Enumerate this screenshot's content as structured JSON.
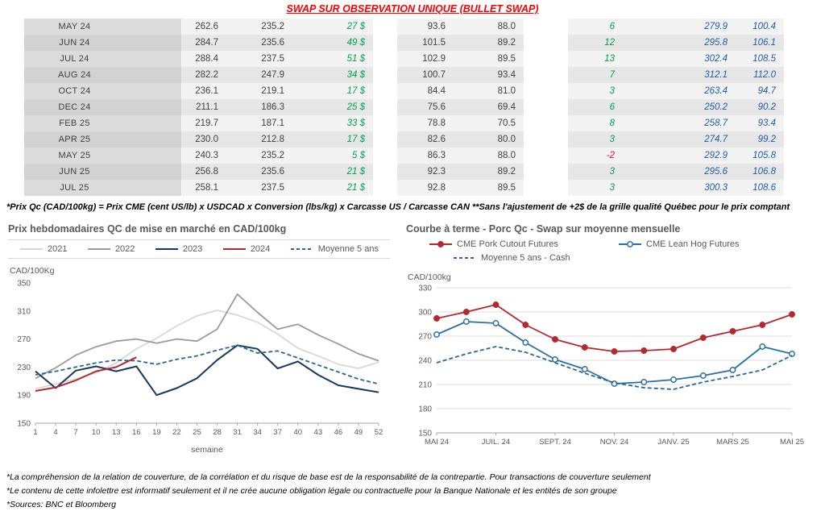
{
  "title": "SWAP SUR OBSERVATION UNIQUE (BULLET SWAP)",
  "colors": {
    "title_red": "#ff0000",
    "positive_green": "#00a14e",
    "negative_red": "#e8112d",
    "futures_blue": "#1f5ca8"
  },
  "table": {
    "rows": [
      {
        "month": "MAY 24",
        "cells": [
          "262.6",
          "235.2",
          "27 $",
          "93.6",
          "88.0",
          "6",
          "279.9",
          "100.4"
        ]
      },
      {
        "month": "JUN 24",
        "cells": [
          "284.7",
          "235.6",
          "49 $",
          "101.5",
          "89.2",
          "12",
          "295.8",
          "106.1"
        ]
      },
      {
        "month": "JUL 24",
        "cells": [
          "288.4",
          "237.5",
          "51 $",
          "102.9",
          "89.5",
          "13",
          "302.4",
          "108.5"
        ]
      },
      {
        "month": "AUG 24",
        "cells": [
          "282.2",
          "247.9",
          "34 $",
          "100.7",
          "93.4",
          "7",
          "312.1",
          "112.0"
        ]
      },
      {
        "month": "OCT 24",
        "cells": [
          "236.1",
          "219.1",
          "17 $",
          "84.4",
          "81.0",
          "3",
          "263.4",
          "94.7"
        ]
      },
      {
        "month": "DEC 24",
        "cells": [
          "211.1",
          "186.3",
          "25 $",
          "75.6",
          "69.4",
          "6",
          "250.2",
          "90.2"
        ]
      },
      {
        "month": "FEB 25",
        "cells": [
          "219.7",
          "187.1",
          "33 $",
          "78.8",
          "70.5",
          "8",
          "258.7",
          "93.4"
        ]
      },
      {
        "month": "APR 25",
        "cells": [
          "230.0",
          "212.8",
          "17 $",
          "82.6",
          "80.0",
          "3",
          "274.7",
          "99.2"
        ]
      },
      {
        "month": "MAY 25",
        "cells": [
          "240.3",
          "235.2",
          "5 $",
          "86.3",
          "88.0",
          "-2",
          "292.9",
          "105.8"
        ]
      },
      {
        "month": "JUN 25",
        "cells": [
          "256.8",
          "235.6",
          "21 $",
          "92.3",
          "89.2",
          "3",
          "295.6",
          "106.8"
        ]
      },
      {
        "month": "JUL 25",
        "cells": [
          "258.1",
          "237.5",
          "21 $",
          "92.8",
          "89.5",
          "3",
          "300.3",
          "108.6"
        ]
      }
    ]
  },
  "table_footnote": "*Prix Qc (CAD/100kg) = Prix CME (cent US/lb) x USDCAD x Conversion (lbs/kg) x Carcasse US / Carcasse CAN **Sans l'ajustement de +2$ de la grille qualité Québec pour le prix comptant",
  "chart_data": [
    {
      "type": "line",
      "title": "Prix hebdomadaires QC de mise en marché en CAD/100kg",
      "ylabel": "CAD/100Kg",
      "xlabel": "semaine",
      "ylim": [
        150,
        350
      ],
      "yticks": [
        150,
        190,
        230,
        270,
        310,
        350
      ],
      "x": [
        1,
        4,
        7,
        10,
        13,
        16,
        19,
        22,
        25,
        28,
        31,
        34,
        37,
        40,
        43,
        46,
        49,
        52
      ],
      "xticks": [
        1,
        4,
        7,
        10,
        13,
        16,
        19,
        22,
        25,
        28,
        31,
        34,
        37,
        40,
        43,
        46,
        49,
        52
      ],
      "grid": false,
      "legend_position": "top",
      "series": [
        {
          "name": "2021",
          "color": "#d6d6d6",
          "style": "solid",
          "width": 1.7,
          "values": [
            199,
            206,
            213,
            222,
            236,
            256,
            271,
            289,
            303,
            311,
            304,
            294,
            277,
            257,
            246,
            234,
            228,
            237
          ]
        },
        {
          "name": "2022",
          "color": "#9b9b9b",
          "style": "solid",
          "width": 1.8,
          "values": [
            214,
            229,
            247,
            259,
            267,
            270,
            264,
            270,
            267,
            284,
            334,
            308,
            284,
            291,
            276,
            263,
            249,
            239
          ]
        },
        {
          "name": "2023",
          "color": "#17375e",
          "style": "solid",
          "width": 2,
          "values": [
            224,
            200,
            225,
            231,
            224,
            231,
            190,
            200,
            214,
            240,
            261,
            256,
            228,
            238,
            219,
            204,
            199,
            194
          ]
        },
        {
          "name": "2024",
          "color": "#b4282e",
          "style": "solid",
          "width": 2,
          "values": [
            196,
            201,
            211,
            224,
            230,
            244,
            null,
            null,
            null,
            null,
            null,
            null,
            null,
            null,
            null,
            null,
            null,
            null
          ]
        },
        {
          "name": "Moyenne 5 ans",
          "color": "#2e6496",
          "style": "dashed",
          "width": 1.8,
          "values": [
            219,
            224,
            230,
            236,
            240,
            239,
            234,
            241,
            246,
            254,
            261,
            250,
            253,
            243,
            233,
            223,
            213,
            206
          ]
        }
      ]
    },
    {
      "type": "line",
      "title": "Courbe à terme - Porc Qc - Swap sur moyenne mensuelle",
      "ylabel": "CAD/100kg",
      "xlabel": "",
      "ylim": [
        150,
        330
      ],
      "yticks": [
        150,
        180,
        210,
        240,
        270,
        300,
        330
      ],
      "x": [
        0,
        1,
        2,
        3,
        4,
        5,
        6,
        7,
        8,
        9,
        10,
        11,
        12
      ],
      "xticks": [
        {
          "pos": 0,
          "label": "MAI 24"
        },
        {
          "pos": 2,
          "label": "JUIL. 24"
        },
        {
          "pos": 4,
          "label": "SEPT. 24"
        },
        {
          "pos": 6,
          "label": "NOV. 24"
        },
        {
          "pos": 8,
          "label": "JANV. 25"
        },
        {
          "pos": 10,
          "label": "MARS 25"
        },
        {
          "pos": 12,
          "label": "MAI 25"
        }
      ],
      "grid": true,
      "legend_position": "top",
      "series": [
        {
          "name": "CME Pork Cutout Futures",
          "color": "#b4282e",
          "style": "solid",
          "width": 1.8,
          "marker": "filled",
          "values": [
            292,
            300,
            309,
            284,
            266,
            256,
            251,
            252,
            254,
            268,
            276,
            284,
            297
          ]
        },
        {
          "name": "CME Lean Hog Futures",
          "color": "#2a6fa8",
          "style": "solid",
          "width": 1.8,
          "marker": "open",
          "values": [
            272,
            288,
            286,
            262,
            241,
            229,
            211,
            213,
            216,
            221,
            228,
            257,
            248
          ]
        },
        {
          "name": "Moyenne 5 ans - Cash",
          "color": "#2e6496",
          "style": "dashed",
          "width": 1.8,
          "values": [
            237,
            248,
            257,
            250,
            237,
            224,
            212,
            206,
            204,
            213,
            220,
            228,
            246
          ]
        }
      ]
    }
  ],
  "footnotes": [
    "*La compréhension de la relation de couverture, de la corrélation et du risque de base est de la responsabilité de la contrepartie. Pour transactions de couverture seulement",
    "*Le contenu de cette infolettre est informatif seulement et il ne crée aucune obligation légale ou contractuelle pour la Banque Nationale et les entités de son groupe",
    "*Sources: BNC et Bloomberg"
  ]
}
